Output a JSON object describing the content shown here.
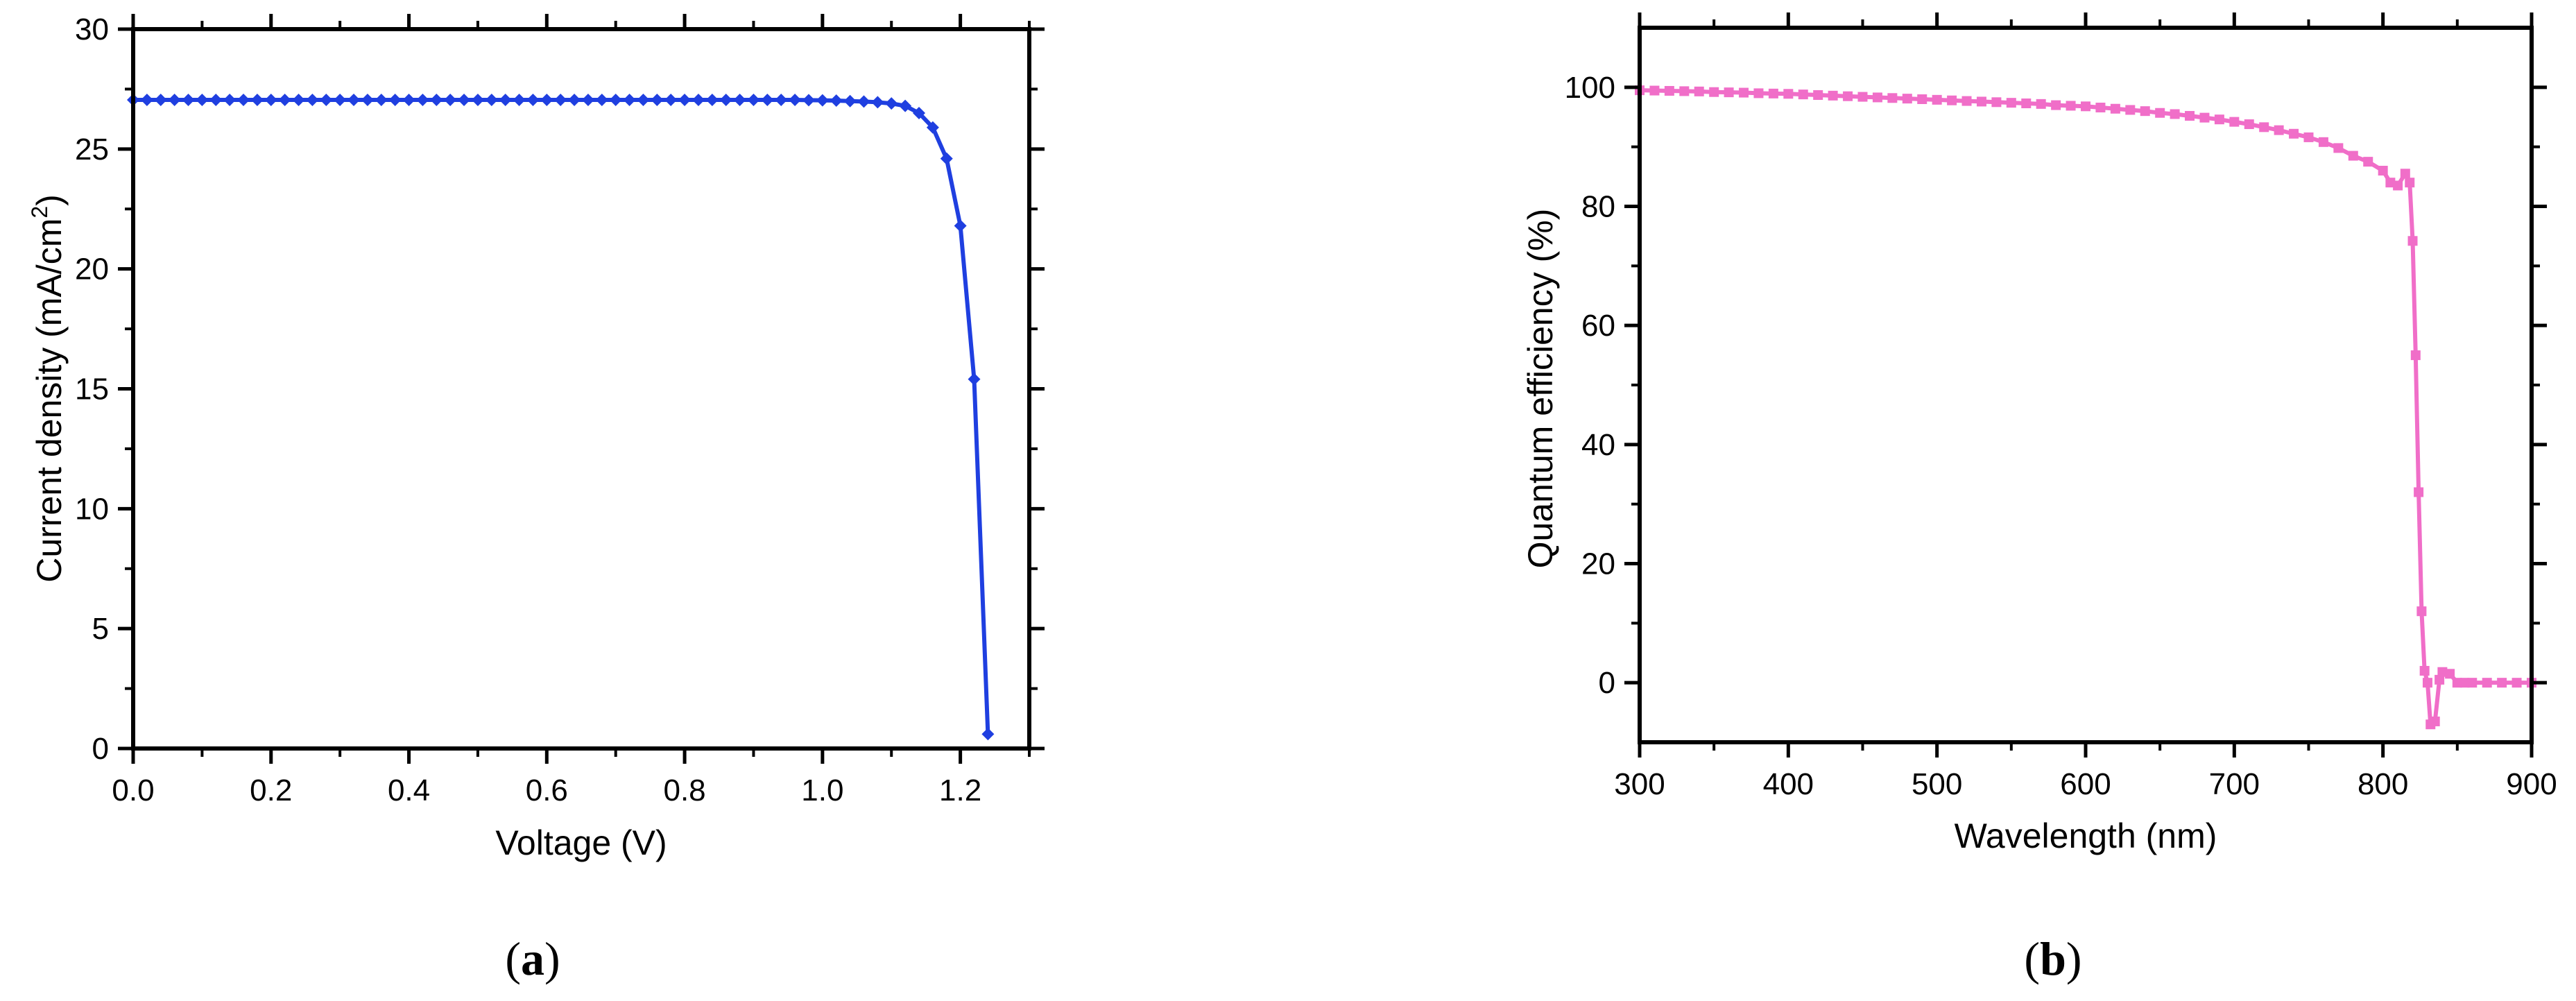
{
  "chart_data": [
    {
      "panel_label": "a",
      "type": "line",
      "xlabel": "Voltage (V)",
      "ylabel_main": "Current density (mA/cm",
      "ylabel_sup": "2",
      "ylabel_close": ")",
      "xlim": [
        0,
        1.3
      ],
      "ylim": [
        0,
        30
      ],
      "x_ticks": [
        0.0,
        0.2,
        0.4,
        0.6,
        0.8,
        1.0,
        1.2
      ],
      "x_tick_labels": [
        "0.0",
        "0.2",
        "0.4",
        "0.6",
        "0.8",
        "1.0",
        "1.2"
      ],
      "y_ticks": [
        0,
        5,
        10,
        15,
        20,
        25,
        30
      ],
      "y_tick_labels": [
        "0",
        "5",
        "10",
        "15",
        "20",
        "25",
        "30"
      ],
      "grid": false,
      "marker": "diamond",
      "color": "#1f3fe0",
      "series": [
        {
          "x": [
            0.0,
            0.02,
            0.04,
            0.06,
            0.08,
            0.1,
            0.12,
            0.14,
            0.16,
            0.18,
            0.2,
            0.22,
            0.24,
            0.26,
            0.28,
            0.3,
            0.32,
            0.34,
            0.36,
            0.38,
            0.4,
            0.42,
            0.44,
            0.46,
            0.48,
            0.5,
            0.52,
            0.54,
            0.56,
            0.58,
            0.6,
            0.62,
            0.64,
            0.66,
            0.68,
            0.7,
            0.72,
            0.74,
            0.76,
            0.78,
            0.8,
            0.82,
            0.84,
            0.86,
            0.88,
            0.9,
            0.92,
            0.94,
            0.96,
            0.98,
            1.0,
            1.02,
            1.04,
            1.06,
            1.08,
            1.1,
            1.12,
            1.14,
            1.16,
            1.18,
            1.2,
            1.22,
            1.24
          ],
          "y": [
            27.05,
            27.05,
            27.05,
            27.05,
            27.05,
            27.05,
            27.05,
            27.05,
            27.05,
            27.05,
            27.05,
            27.05,
            27.05,
            27.05,
            27.05,
            27.05,
            27.05,
            27.05,
            27.05,
            27.05,
            27.05,
            27.05,
            27.05,
            27.05,
            27.05,
            27.05,
            27.05,
            27.05,
            27.05,
            27.05,
            27.05,
            27.05,
            27.05,
            27.05,
            27.05,
            27.05,
            27.05,
            27.05,
            27.05,
            27.05,
            27.05,
            27.05,
            27.05,
            27.05,
            27.05,
            27.05,
            27.05,
            27.05,
            27.05,
            27.04,
            27.03,
            27.02,
            27.0,
            26.98,
            26.95,
            26.9,
            26.8,
            26.5,
            25.9,
            24.6,
            21.8,
            15.4,
            0.6
          ]
        }
      ]
    },
    {
      "panel_label": "b",
      "type": "line",
      "xlabel": "Wavelength (nm)",
      "ylabel": "Quantum efficiency (%)",
      "xlim": [
        300,
        900
      ],
      "ylim": [
        -10,
        110
      ],
      "x_ticks": [
        300,
        400,
        500,
        600,
        700,
        800,
        900
      ],
      "x_tick_labels": [
        "300",
        "400",
        "500",
        "600",
        "700",
        "800",
        "900"
      ],
      "y_ticks": [
        0,
        20,
        40,
        60,
        80,
        100
      ],
      "y_tick_labels": [
        "0",
        "20",
        "40",
        "60",
        "80",
        "100"
      ],
      "grid": false,
      "marker": "square",
      "color": "#f06ec8",
      "series": [
        {
          "x": [
            300,
            310,
            320,
            330,
            340,
            350,
            360,
            370,
            380,
            390,
            400,
            410,
            420,
            430,
            440,
            450,
            460,
            470,
            480,
            490,
            500,
            510,
            520,
            530,
            540,
            550,
            560,
            570,
            580,
            590,
            600,
            610,
            620,
            630,
            640,
            650,
            660,
            670,
            680,
            690,
            700,
            710,
            720,
            730,
            740,
            750,
            760,
            770,
            780,
            790,
            800,
            805,
            810,
            815,
            818,
            820,
            822,
            824,
            826,
            828,
            830,
            832,
            835,
            838,
            840,
            845,
            850,
            855,
            860,
            870,
            880,
            890,
            900
          ],
          "y": [
            99.5,
            99.45,
            99.4,
            99.35,
            99.3,
            99.2,
            99.15,
            99.1,
            99.0,
            98.95,
            98.9,
            98.8,
            98.7,
            98.6,
            98.5,
            98.4,
            98.3,
            98.2,
            98.1,
            98.0,
            97.9,
            97.8,
            97.7,
            97.6,
            97.5,
            97.4,
            97.3,
            97.2,
            97.0,
            96.9,
            96.8,
            96.6,
            96.4,
            96.2,
            96.0,
            95.7,
            95.5,
            95.2,
            94.9,
            94.6,
            94.2,
            93.8,
            93.3,
            92.8,
            92.2,
            91.6,
            90.8,
            89.8,
            88.5,
            87.5,
            86.0,
            84.0,
            83.5,
            85.5,
            84.0,
            74.2,
            55.0,
            32.0,
            12.0,
            2.0,
            0.0,
            -7.0,
            -6.5,
            0.5,
            1.8,
            1.5,
            0.0,
            0.0,
            0.0,
            0.0,
            0.0,
            0.0,
            0.0
          ]
        }
      ]
    }
  ]
}
